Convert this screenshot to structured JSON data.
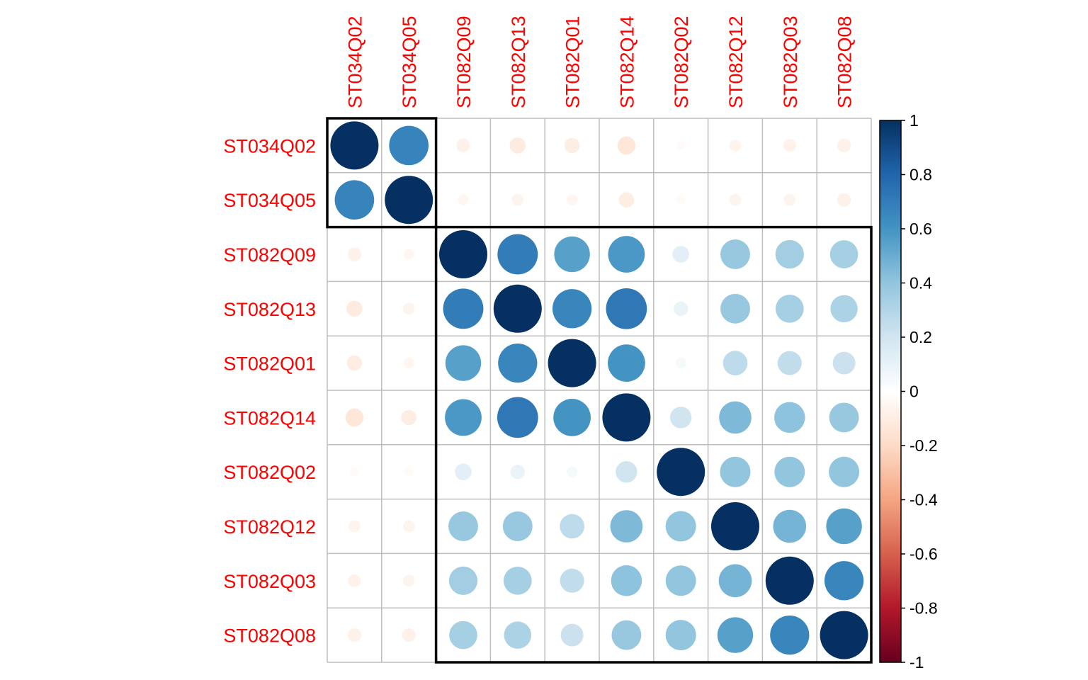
{
  "chart_data": {
    "type": "heatmap",
    "title": "",
    "xlabel": "",
    "ylabel": "",
    "variables": [
      "ST034Q02",
      "ST034Q05",
      "ST082Q09",
      "ST082Q13",
      "ST082Q01",
      "ST082Q14",
      "ST082Q02",
      "ST082Q12",
      "ST082Q03",
      "ST082Q08"
    ],
    "matrix": [
      [
        1.0,
        0.67,
        -0.08,
        -0.11,
        -0.1,
        -0.14,
        -0.03,
        -0.06,
        -0.07,
        -0.08
      ],
      [
        0.67,
        1.0,
        -0.05,
        -0.06,
        -0.05,
        -0.1,
        -0.03,
        -0.06,
        -0.06,
        -0.08
      ],
      [
        -0.08,
        -0.05,
        1.0,
        0.7,
        0.55,
        0.58,
        0.12,
        0.38,
        0.35,
        0.34
      ],
      [
        -0.11,
        -0.06,
        0.7,
        1.0,
        0.66,
        0.72,
        0.09,
        0.38,
        0.34,
        0.32
      ],
      [
        -0.1,
        -0.05,
        0.55,
        0.66,
        1.0,
        0.6,
        0.05,
        0.26,
        0.25,
        0.22
      ],
      [
        -0.14,
        -0.1,
        0.58,
        0.72,
        0.6,
        1.0,
        0.2,
        0.45,
        0.41,
        0.38
      ],
      [
        -0.03,
        -0.03,
        0.12,
        0.09,
        0.05,
        0.2,
        1.0,
        0.4,
        0.4,
        0.4
      ],
      [
        -0.06,
        -0.06,
        0.38,
        0.38,
        0.26,
        0.45,
        0.4,
        1.0,
        0.47,
        0.55
      ],
      [
        -0.07,
        -0.06,
        0.35,
        0.34,
        0.25,
        0.41,
        0.4,
        0.47,
        1.0,
        0.66
      ],
      [
        -0.08,
        -0.08,
        0.34,
        0.32,
        0.22,
        0.38,
        0.4,
        0.55,
        0.66,
        1.0
      ]
    ],
    "clusters": [
      [
        0,
        1
      ],
      [
        2,
        9
      ]
    ],
    "colorbar": {
      "range": [
        -1,
        1
      ],
      "ticks": [
        "1",
        "0.8",
        "0.6",
        "0.4",
        "0.2",
        "0",
        "-0.2",
        "-0.4",
        "-0.6",
        "-0.8",
        "-1"
      ]
    },
    "colors": {
      "negative_strong": "#67001f",
      "neutral": "#ffffff",
      "positive_strong": "#053061",
      "label": "#ff0000",
      "grid": "#bebebe",
      "cluster_border": "#000000"
    },
    "grid": true
  }
}
